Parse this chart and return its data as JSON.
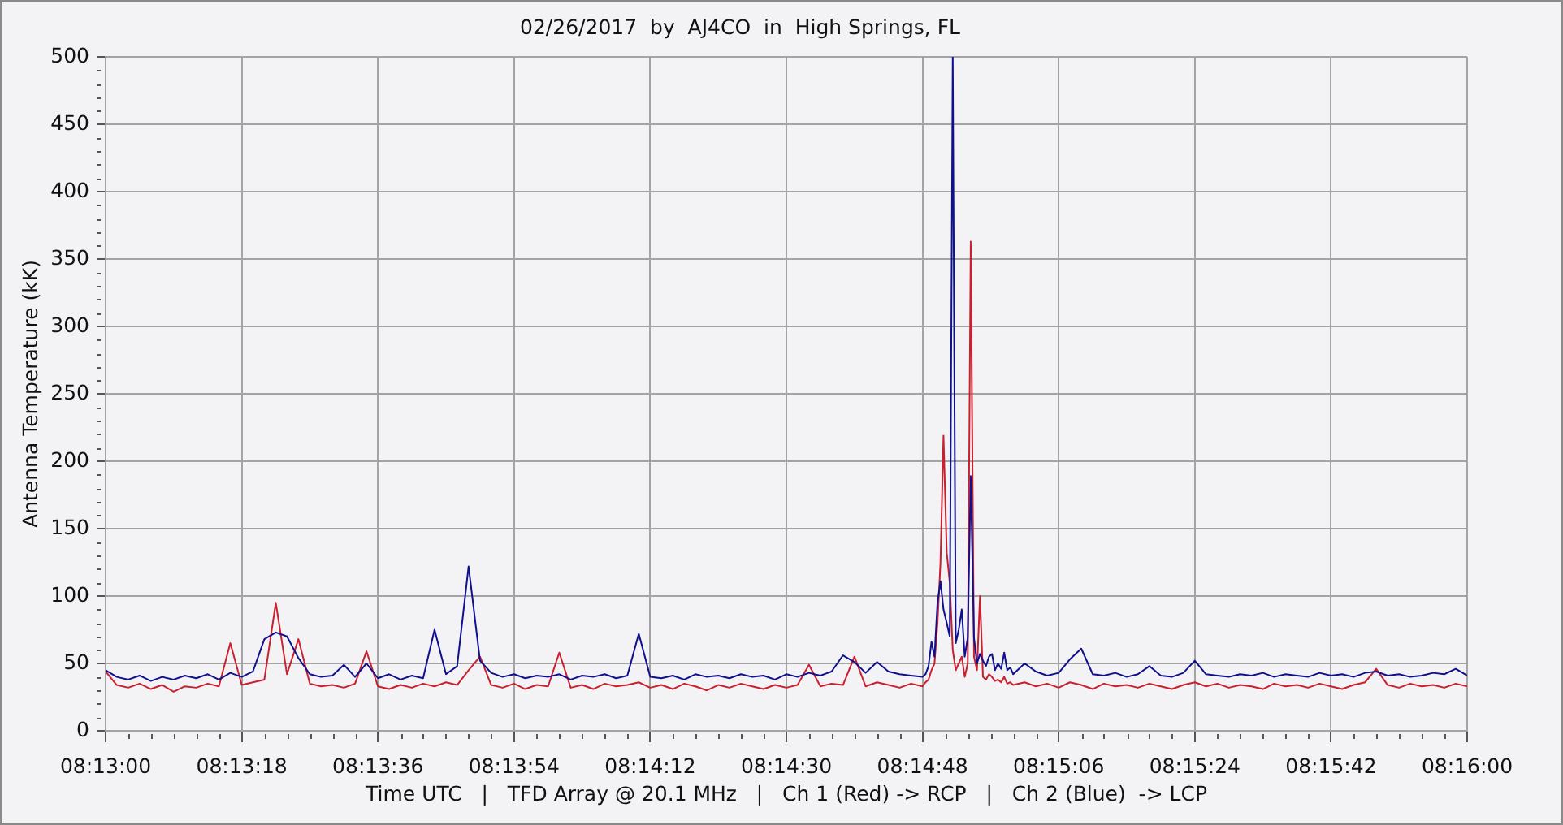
{
  "chart_data": {
    "type": "line",
    "title": "02/26/2017  by  AJ4CO  in  High Springs, FL",
    "xlabel": "Time UTC   |   TFD Array @ 20.1 MHz   |   Ch 1 (Red) -> RCP   |   Ch 2 (Blue)  -> LCP",
    "ylabel": "Antenna Temperature (kK)",
    "x": [
      8.21667,
      8.21708,
      8.2175,
      8.21792,
      8.21833,
      8.21875,
      8.21917,
      8.21958,
      8.22,
      8.22042,
      8.22083,
      8.22125,
      8.22167,
      8.22208,
      8.2225,
      8.22292,
      8.22333,
      8.22375,
      8.22417,
      8.22458,
      8.225,
      8.22542,
      8.22583,
      8.22625,
      8.22667,
      8.22708,
      8.2275,
      8.22792,
      8.22833,
      8.22875,
      8.22917,
      8.22958,
      8.23,
      8.23042,
      8.23083,
      8.23125,
      8.23167,
      8.23208,
      8.2325,
      8.23292,
      8.23333,
      8.23375,
      8.23417,
      8.23458,
      8.235,
      8.23542,
      8.23583,
      8.23625,
      8.23667,
      8.23708,
      8.2375,
      8.23792,
      8.23833,
      8.23875,
      8.23917,
      8.23958,
      8.24,
      8.24042,
      8.24083,
      8.24125,
      8.24167,
      8.24208,
      8.2425,
      8.24292,
      8.24333,
      8.24375,
      8.24417,
      8.24458,
      8.245,
      8.24542,
      8.24583,
      8.24625,
      8.24667,
      8.24678,
      8.24689,
      8.247,
      8.24711,
      8.24722,
      8.24733,
      8.24744,
      8.24756,
      8.24767,
      8.24778,
      8.24789,
      8.248,
      8.24811,
      8.24822,
      8.24833,
      8.24844,
      8.24856,
      8.24867,
      8.24878,
      8.24889,
      8.249,
      8.24911,
      8.24922,
      8.24933,
      8.24944,
      8.24956,
      8.24967,
      8.24978,
      8.24989,
      8.25,
      8.25042,
      8.25083,
      8.25125,
      8.25167,
      8.25208,
      8.2525,
      8.25292,
      8.25333,
      8.25375,
      8.25417,
      8.25458,
      8.255,
      8.25542,
      8.25583,
      8.25625,
      8.25667,
      8.25708,
      8.2575,
      8.25792,
      8.25833,
      8.25875,
      8.25917,
      8.25958,
      8.26,
      8.26042,
      8.26083,
      8.26125,
      8.26167,
      8.26208,
      8.2625,
      8.26292,
      8.26333,
      8.26375,
      8.26417,
      8.26458,
      8.265,
      8.26542,
      8.26583,
      8.26625,
      8.26667
    ],
    "series": [
      {
        "color": "#c8202e",
        "values": [
          44,
          34,
          32,
          35,
          31,
          34,
          29,
          33,
          32,
          35,
          33,
          65,
          34,
          36,
          38,
          95,
          42,
          68,
          35,
          33,
          34,
          32,
          35,
          59,
          33,
          31,
          34,
          32,
          35,
          33,
          36,
          34,
          45,
          55,
          34,
          32,
          35,
          31,
          34,
          33,
          58,
          32,
          34,
          31,
          35,
          33,
          34,
          36,
          32,
          34,
          31,
          35,
          33,
          30,
          34,
          32,
          35,
          33,
          31,
          34,
          32,
          34,
          49,
          33,
          35,
          34,
          55,
          33,
          36,
          34,
          32,
          35,
          33,
          36,
          38,
          45,
          50,
          80,
          125,
          219,
          132,
          110,
          60,
          45,
          50,
          55,
          40,
          50,
          363,
          55,
          45,
          100,
          40,
          38,
          42,
          40,
          37,
          38,
          36,
          40,
          35,
          36,
          34,
          36,
          33,
          35,
          32,
          36,
          34,
          31,
          35,
          33,
          34,
          32,
          35,
          33,
          31,
          34,
          36,
          33,
          35,
          32,
          34,
          33,
          31,
          35,
          33,
          34,
          32,
          35,
          33,
          31,
          34,
          36,
          46,
          34,
          32,
          35,
          33,
          34,
          32,
          35,
          33
        ]
      },
      {
        "color": "#10108c",
        "values": [
          45,
          40,
          38,
          41,
          37,
          40,
          38,
          41,
          39,
          42,
          38,
          43,
          40,
          44,
          68,
          73,
          70,
          54,
          42,
          40,
          41,
          49,
          40,
          50,
          39,
          42,
          38,
          41,
          39,
          75,
          42,
          48,
          122,
          52,
          43,
          40,
          42,
          39,
          41,
          40,
          42,
          38,
          41,
          40,
          42,
          39,
          41,
          72,
          40,
          39,
          41,
          38,
          42,
          40,
          41,
          39,
          42,
          40,
          41,
          38,
          42,
          40,
          43,
          41,
          44,
          56,
          51,
          43,
          51,
          44,
          42,
          41,
          40,
          42,
          48,
          66,
          55,
          95,
          111,
          90,
          80,
          70,
          500,
          65,
          75,
          90,
          55,
          69,
          189,
          69,
          50,
          57,
          52,
          48,
          55,
          57,
          45,
          50,
          46,
          58,
          45,
          47,
          42,
          50,
          44,
          41,
          43,
          53,
          61,
          42,
          41,
          43,
          40,
          42,
          48,
          41,
          40,
          43,
          52,
          42,
          41,
          40,
          42,
          41,
          43,
          40,
          42,
          41,
          40,
          43,
          41,
          42,
          40,
          43,
          44,
          41,
          42,
          40,
          41,
          43,
          42,
          46,
          41
        ]
      }
    ],
    "xlim": [
      8.21667,
      8.26667
    ],
    "xticks": [
      {
        "value": 8.21667,
        "label": "08:13:00"
      },
      {
        "value": 8.2175,
        "label": null
      },
      {
        "value": 8.21833,
        "label": null
      },
      {
        "value": 8.21917,
        "label": null
      },
      {
        "value": 8.22,
        "label": null
      },
      {
        "value": 8.22083,
        "label": null
      },
      {
        "value": 8.22167,
        "label": "08:13:18"
      },
      {
        "value": 8.2225,
        "label": null
      },
      {
        "value": 8.22333,
        "label": null
      },
      {
        "value": 8.22417,
        "label": null
      },
      {
        "value": 8.225,
        "label": null
      },
      {
        "value": 8.22583,
        "label": null
      },
      {
        "value": 8.22667,
        "label": "08:13:36"
      },
      {
        "value": 8.2275,
        "label": null
      },
      {
        "value": 8.22833,
        "label": null
      },
      {
        "value": 8.22917,
        "label": null
      },
      {
        "value": 8.23,
        "label": null
      },
      {
        "value": 8.23083,
        "label": null
      },
      {
        "value": 8.23167,
        "label": "08:13:54"
      },
      {
        "value": 8.2325,
        "label": null
      },
      {
        "value": 8.23333,
        "label": null
      },
      {
        "value": 8.23417,
        "label": null
      },
      {
        "value": 8.235,
        "label": null
      },
      {
        "value": 8.23583,
        "label": null
      },
      {
        "value": 8.23667,
        "label": "08:14:12"
      },
      {
        "value": 8.2375,
        "label": null
      },
      {
        "value": 8.23833,
        "label": null
      },
      {
        "value": 8.23917,
        "label": null
      },
      {
        "value": 8.24,
        "label": null
      },
      {
        "value": 8.24083,
        "label": null
      },
      {
        "value": 8.24167,
        "label": "08:14:30"
      },
      {
        "value": 8.2425,
        "label": null
      },
      {
        "value": 8.24333,
        "label": null
      },
      {
        "value": 8.24417,
        "label": null
      },
      {
        "value": 8.245,
        "label": null
      },
      {
        "value": 8.24583,
        "label": null
      },
      {
        "value": 8.24667,
        "label": "08:14:48"
      },
      {
        "value": 8.2475,
        "label": null
      },
      {
        "value": 8.24833,
        "label": null
      },
      {
        "value": 8.24917,
        "label": null
      },
      {
        "value": 8.25,
        "label": null
      },
      {
        "value": 8.25083,
        "label": null
      },
      {
        "value": 8.25167,
        "label": "08:15:06"
      },
      {
        "value": 8.2525,
        "label": null
      },
      {
        "value": 8.25333,
        "label": null
      },
      {
        "value": 8.25417,
        "label": null
      },
      {
        "value": 8.255,
        "label": null
      },
      {
        "value": 8.25583,
        "label": null
      },
      {
        "value": 8.25667,
        "label": "08:15:24"
      },
      {
        "value": 8.2575,
        "label": null
      },
      {
        "value": 8.25833,
        "label": null
      },
      {
        "value": 8.25917,
        "label": null
      },
      {
        "value": 8.26,
        "label": null
      },
      {
        "value": 8.26083,
        "label": null
      },
      {
        "value": 8.26167,
        "label": "08:15:42"
      },
      {
        "value": 8.2625,
        "label": null
      },
      {
        "value": 8.26333,
        "label": null
      },
      {
        "value": 8.26417,
        "label": null
      },
      {
        "value": 8.265,
        "label": null
      },
      {
        "value": 8.26583,
        "label": null
      },
      {
        "value": 8.26667,
        "label": "08:16:00"
      }
    ],
    "ylim": [
      0,
      500
    ],
    "yticks": [
      0,
      {
        "value": 10,
        "label": null
      },
      {
        "value": 20,
        "label": null
      },
      {
        "value": 30,
        "label": null
      },
      {
        "value": 40,
        "label": null
      },
      50,
      {
        "value": 60,
        "label": null
      },
      {
        "value": 70,
        "label": null
      },
      {
        "value": 80,
        "label": null
      },
      {
        "value": 90,
        "label": null
      },
      100,
      {
        "value": 110,
        "label": null
      },
      {
        "value": 120,
        "label": null
      },
      {
        "value": 130,
        "label": null
      },
      {
        "value": 140,
        "label": null
      },
      150,
      {
        "value": 160,
        "label": null
      },
      {
        "value": 170,
        "label": null
      },
      {
        "value": 180,
        "label": null
      },
      {
        "value": 190,
        "label": null
      },
      200,
      {
        "value": 210,
        "label": null
      },
      {
        "value": 220,
        "label": null
      },
      {
        "value": 230,
        "label": null
      },
      {
        "value": 240,
        "label": null
      },
      250,
      {
        "value": 260,
        "label": null
      },
      {
        "value": 270,
        "label": null
      },
      {
        "value": 280,
        "label": null
      },
      {
        "value": 290,
        "label": null
      },
      300,
      {
        "value": 310,
        "label": null
      },
      {
        "value": 320,
        "label": null
      },
      {
        "value": 330,
        "label": null
      },
      {
        "value": 340,
        "label": null
      },
      350,
      {
        "value": 360,
        "label": null
      },
      {
        "value": 370,
        "label": null
      },
      {
        "value": 380,
        "label": null
      },
      {
        "value": 390,
        "label": null
      },
      400,
      {
        "value": 410,
        "label": null
      },
      {
        "value": 420,
        "label": null
      },
      {
        "value": 430,
        "label": null
      },
      {
        "value": 440,
        "label": null
      },
      450,
      {
        "value": 460,
        "label": null
      },
      {
        "value": 470,
        "label": null
      },
      {
        "value": 480,
        "label": null
      },
      {
        "value": 490,
        "label": null
      },
      500
    ],
    "grid": true
  }
}
